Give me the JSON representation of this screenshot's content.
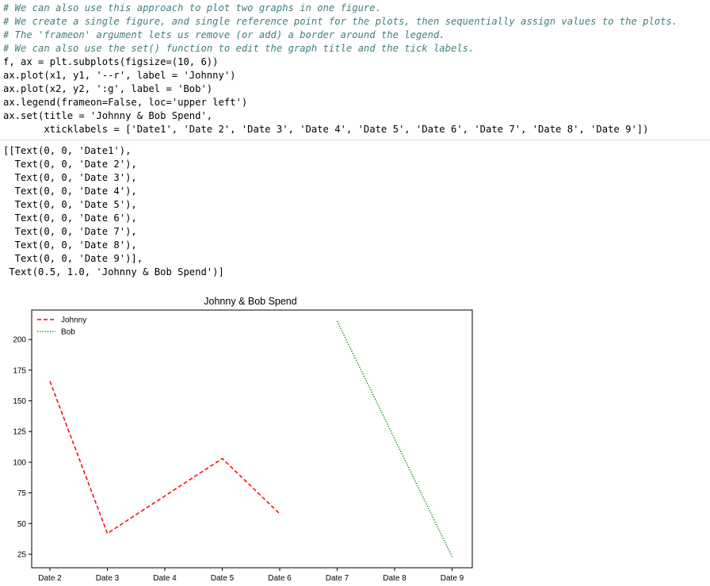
{
  "code_cell": {
    "lines": [
      {
        "kind": "comment",
        "text": "# We can also use this approach to plot two graphs in one figure."
      },
      {
        "kind": "comment",
        "text": "# We create a single figure, and single reference point for the plots, then sequentially assign values to the plots."
      },
      {
        "kind": "comment",
        "text": "# The 'frameon' argument lets us remove (or add) a border around the legend."
      },
      {
        "kind": "comment",
        "text": "# We can also use the set() function to edit the graph title and the tick labels."
      },
      {
        "kind": "code",
        "text": "f, ax = plt.subplots(figsize=(10, 6))"
      },
      {
        "kind": "code",
        "text": "ax.plot(x1, y1, '--r', label = 'Johnny')"
      },
      {
        "kind": "code",
        "text": "ax.plot(x2, y2, ':g', label = 'Bob')"
      },
      {
        "kind": "code",
        "text": "ax.legend(frameon=False, loc='upper left')"
      },
      {
        "kind": "code",
        "text": "ax.set(title = 'Johnny & Bob Spend',"
      },
      {
        "kind": "code",
        "text": "       xticklabels = ['Date1', 'Date 2', 'Date 3', 'Date 4', 'Date 5', 'Date 6', 'Date 7', 'Date 8', 'Date 9'])"
      }
    ]
  },
  "output": {
    "lines": [
      "[[Text(0, 0, 'Date1'),",
      "  Text(0, 0, 'Date 2'),",
      "  Text(0, 0, 'Date 3'),",
      "  Text(0, 0, 'Date 4'),",
      "  Text(0, 0, 'Date 5'),",
      "  Text(0, 0, 'Date 6'),",
      "  Text(0, 0, 'Date 7'),",
      "  Text(0, 0, 'Date 8'),",
      "  Text(0, 0, 'Date 9')],",
      " Text(0.5, 1.0, 'Johnny & Bob Spend')]"
    ]
  },
  "chart_data": {
    "type": "line",
    "title": "Johnny & Bob Spend",
    "xlabel": "",
    "ylabel": "",
    "categories": [
      "Date 2",
      "Date 3",
      "Date 4",
      "Date 5",
      "Date 6",
      "Date 7",
      "Date 8",
      "Date 9"
    ],
    "yticks": [
      25,
      50,
      75,
      100,
      125,
      150,
      175,
      200
    ],
    "ylim": [
      14,
      224
    ],
    "legend_position": "upper-left",
    "legend_frame": false,
    "grid": false,
    "series": [
      {
        "name": "Johnny",
        "color": "#ff0000",
        "style": "dashed",
        "x": [
          "Date 2",
          "Date 3",
          "Date 5",
          "Date 6"
        ],
        "values": [
          166,
          42,
          103,
          58
        ]
      },
      {
        "name": "Bob",
        "color": "#008000",
        "style": "dotted",
        "x": [
          "Date 7",
          "Date 9"
        ],
        "values": [
          215,
          23
        ]
      }
    ]
  }
}
